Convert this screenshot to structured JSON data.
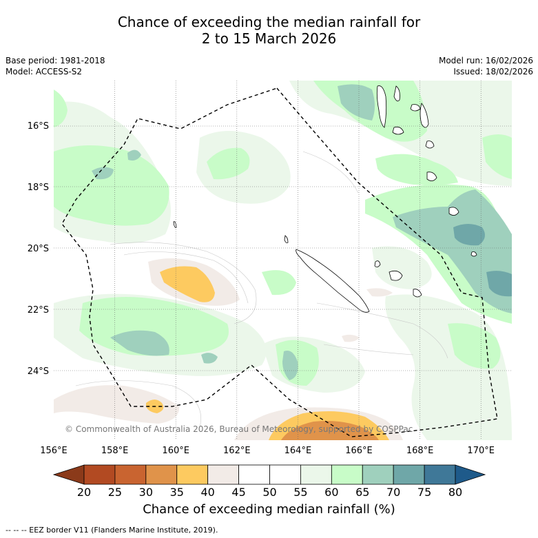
{
  "title": {
    "line1": "Chance of exceeding the median rainfall for",
    "line2": "2 to 15 March 2026"
  },
  "meta": {
    "base_period": "Base period: 1981-2018",
    "model": "Model: ACCESS-S2",
    "model_run": "Model run: 16/02/2026",
    "issued": "Issued: 18/02/2026"
  },
  "map": {
    "lat_labels": [
      "16°S",
      "18°S",
      "20°S",
      "22°S",
      "24°S"
    ],
    "lon_labels": [
      "156°E",
      "158°E",
      "160°E",
      "162°E",
      "164°E",
      "166°E",
      "168°E",
      "170°E"
    ],
    "copyright": "© Commonwealth of Australia 2026, Bureau of Meteorology, supported by COSPPac"
  },
  "colorbar": {
    "ticks": [
      "20",
      "25",
      "30",
      "35",
      "40",
      "45",
      "50",
      "55",
      "60",
      "65",
      "70",
      "75",
      "80"
    ],
    "colors": [
      "#8b3a1a",
      "#b24a22",
      "#c96430",
      "#e0934a",
      "#fdca60",
      "#f2ebe7",
      "#ffffff",
      "#ffffff",
      "#ebf7ea",
      "#c8fcc8",
      "#9fd0bd",
      "#6fa7a8",
      "#3f7898",
      "#1e5a8a"
    ],
    "title": "Chance of exceeding median rainfall (%)"
  },
  "footer": {
    "eez": "--  --  -- EEZ border V11 (Flanders Marine Institute, 2019)."
  }
}
